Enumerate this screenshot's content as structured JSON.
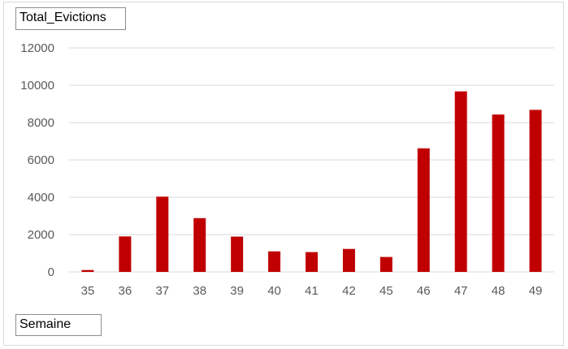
{
  "chart_data": {
    "type": "bar",
    "value_field": "Total_Evictions",
    "axis_field": "Semaine",
    "categories": [
      "35",
      "36",
      "37",
      "38",
      "39",
      "40",
      "41",
      "42",
      "45",
      "46",
      "47",
      "48",
      "49"
    ],
    "series": [
      {
        "values": [
          100,
          1900,
          4030,
          2880,
          1890,
          1100,
          1060,
          1230,
          800,
          6620,
          9670,
          8430,
          8680
        ]
      }
    ],
    "ylim": [
      0,
      12000
    ],
    "yticks": [
      0,
      2000,
      4000,
      6000,
      8000,
      10000,
      12000
    ],
    "grid": true,
    "legend": "none",
    "bar_color": "#c00000",
    "grid_color": "#d9d9d9"
  }
}
